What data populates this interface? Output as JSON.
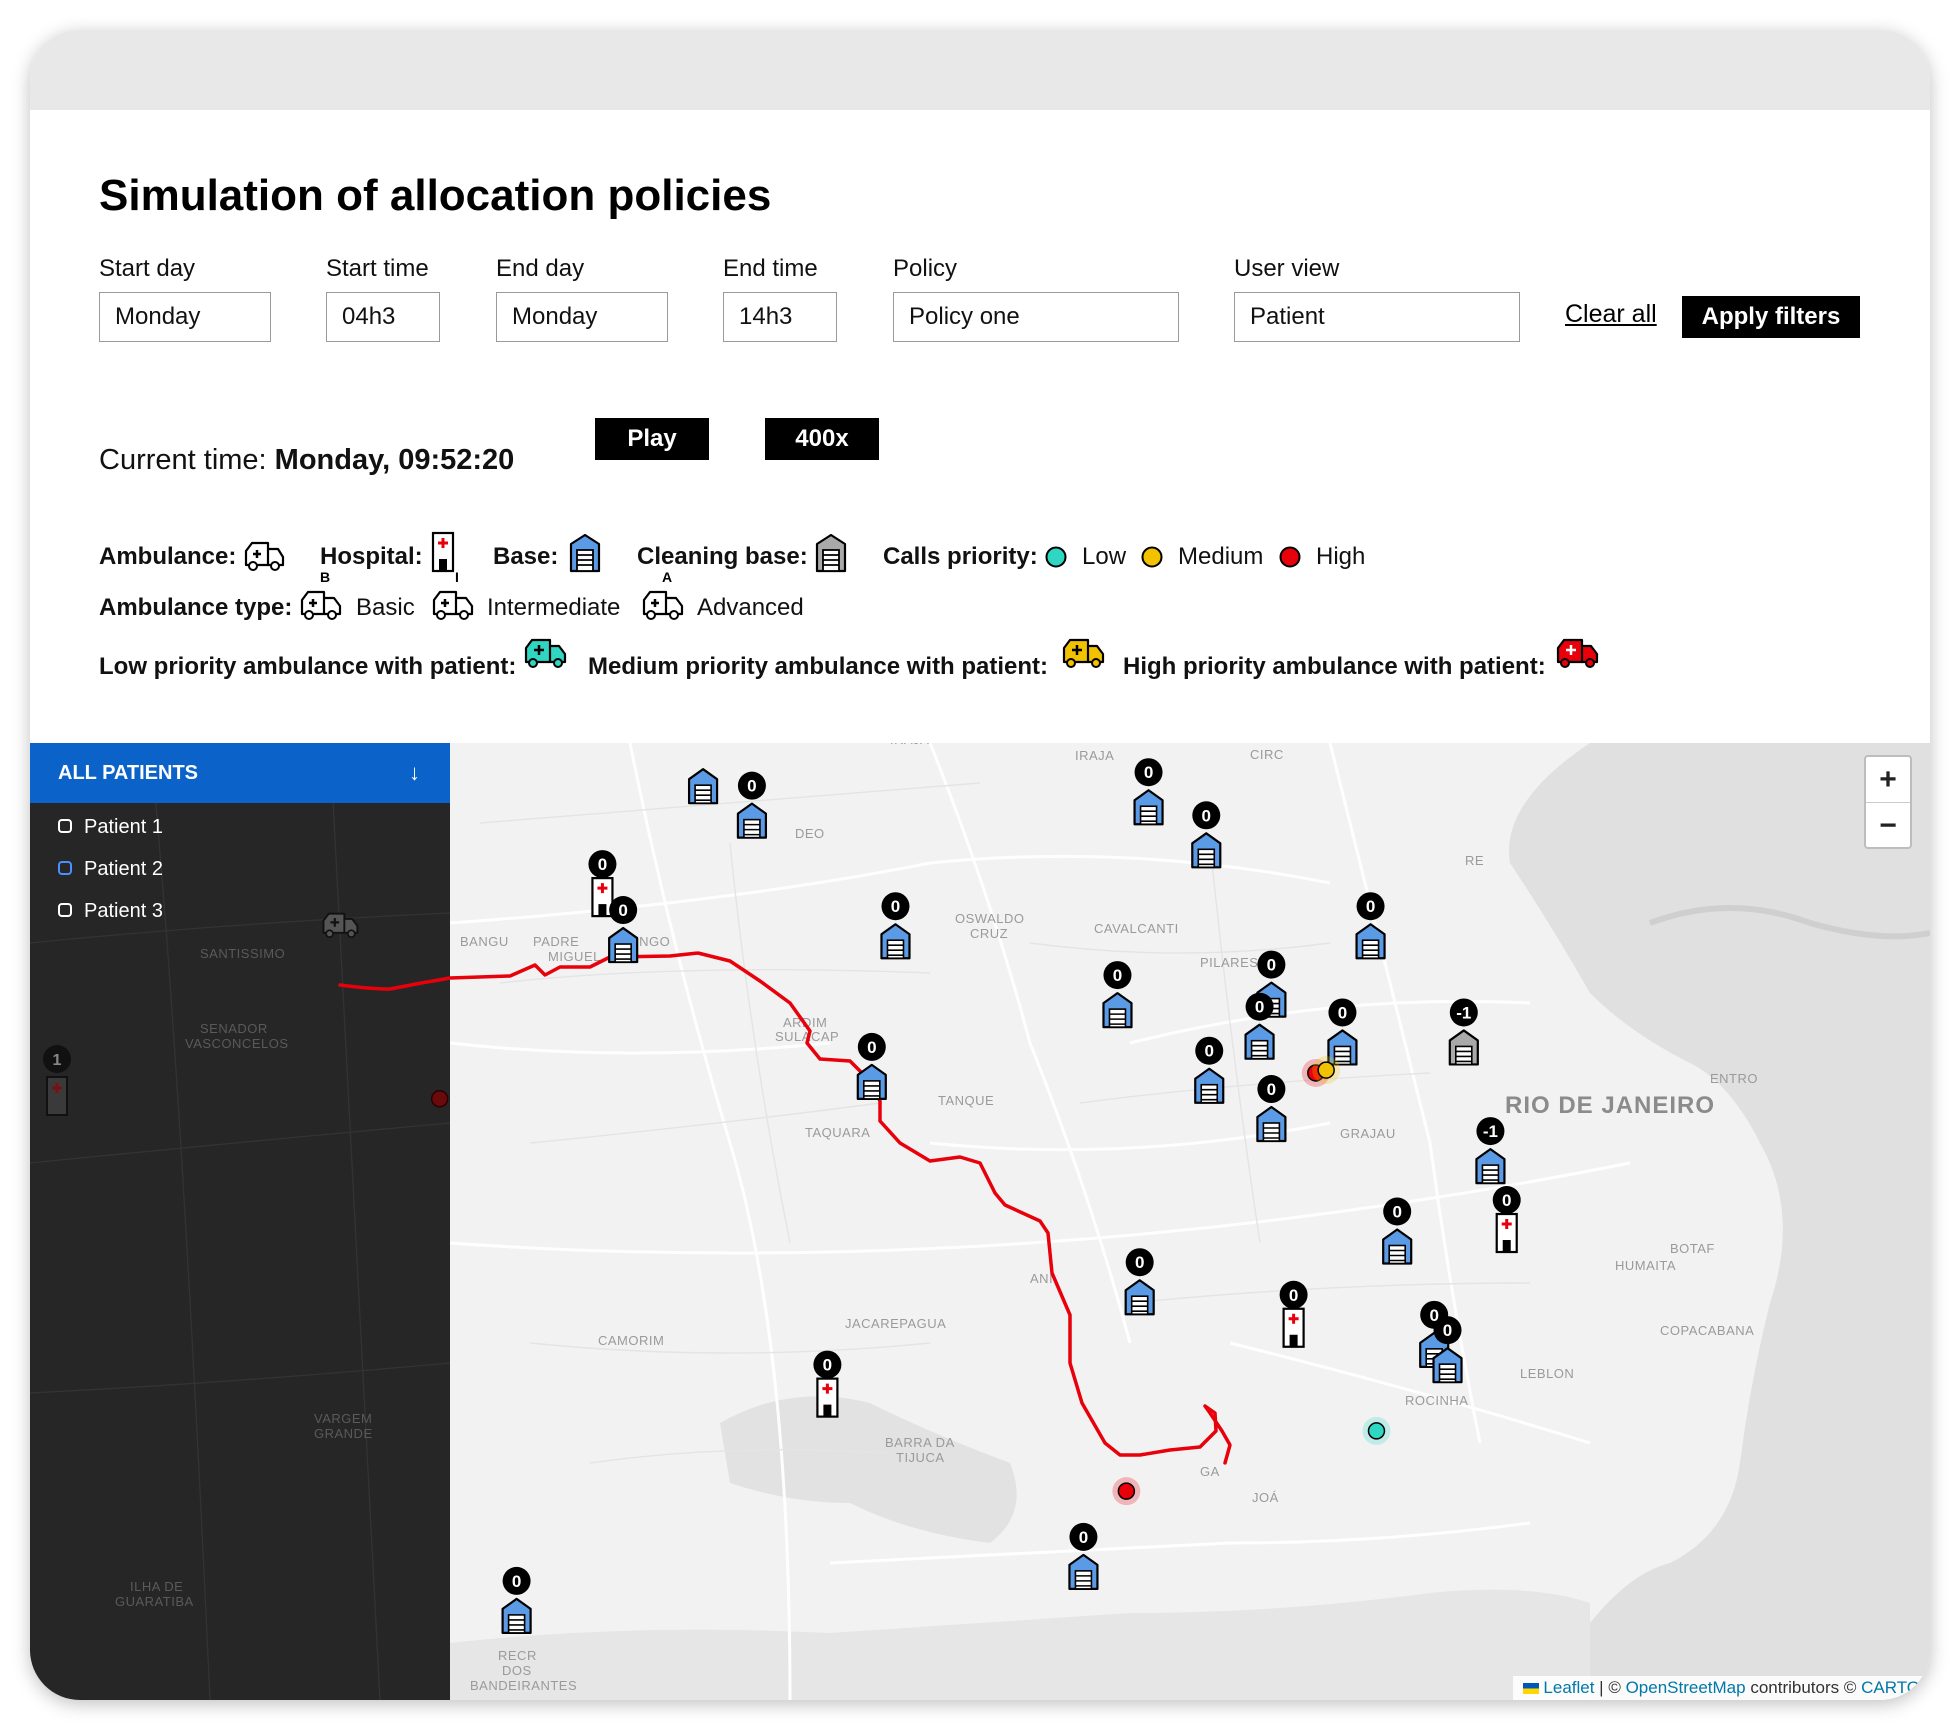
{
  "page": {
    "title": "Simulation of allocation policies"
  },
  "filters": {
    "start_day": {
      "label": "Start day",
      "value": "Monday"
    },
    "start_time": {
      "label": "Start time",
      "value": "04h3"
    },
    "end_day": {
      "label": "End day",
      "value": "Monday"
    },
    "end_time": {
      "label": "End time",
      "value": "14h3"
    },
    "policy": {
      "label": "Policy",
      "value": "Policy one"
    },
    "user_view": {
      "label": "User view",
      "value": "Patient"
    },
    "clear_all": "Clear all",
    "apply": "Apply filters"
  },
  "playback": {
    "current_label": "Current time:",
    "current_value": "Monday, 09:52:20",
    "play": "Play",
    "speed": "400x"
  },
  "legend": {
    "ambulance": "Ambulance:",
    "hospital": "Hospital:",
    "base": "Base:",
    "cleaning_base": "Cleaning base:",
    "calls_priority": "Calls priority:",
    "low": "Low",
    "medium": "Medium",
    "high": "High",
    "ambulance_type": "Ambulance type:",
    "basic": "Basic",
    "intermediate": "Intermediate",
    "advanced": "Advanced",
    "low_amb": "Low priority ambulance with patient:",
    "medium_amb": "Medium priority ambulance with patient:",
    "high_amb": "High priority ambulance with patient:",
    "basic_letter": "B",
    "intermediate_letter": "I",
    "advanced_letter": "A",
    "colors": {
      "low": "#2fd6c2",
      "medium": "#f2c200",
      "high": "#e8000b",
      "base_blue": "#5b9be6",
      "cleaning_gray": "#a9a9a9"
    }
  },
  "panel": {
    "header": "ALL PATIENTS",
    "arrow": "↓",
    "patients": [
      {
        "label": "Patient 1",
        "selected": false
      },
      {
        "label": "Patient 2",
        "selected": true
      },
      {
        "label": "Patient 3",
        "selected": false
      }
    ]
  },
  "map": {
    "zoom_in": "+",
    "zoom_out": "−",
    "attribution": {
      "leaflet": "Leaflet",
      "sep": " | © ",
      "osm": "OpenStreetMap",
      "contrib": " contributors © ",
      "carto": "CARTO"
    },
    "labels": {
      "santissimo": "SANTISSIMO",
      "senador": "SENADOR",
      "vasconcelos": "VASCONCELOS",
      "bangu": "BANGU",
      "padre": "PADRE",
      "miguel": "MIGUEL",
      "realengo": "ENGO",
      "oswaldo": "OSWALDO",
      "cruz": "CRUZ",
      "cavalcanti": "CAVALCANTI",
      "pilares": "PILARES",
      "iraja": "IRAJA",
      "deodoro": "DEO",
      "circ": "CIRC",
      "re": "RE",
      "jardim": "ARDIM",
      "sulacap": "SULACAP",
      "taquara": "TAQUARA",
      "tanque": "TANQUE",
      "rio": "RIO DE JANEIRO",
      "grajau": "GRAJAU",
      "centro": "ENTRO",
      "botafogo": "BOTAF",
      "humaita": "HUMAITA",
      "copacabana": "COPACABANA",
      "leblon": "LEBLON",
      "rocinha": "ROCINHA",
      "jacarepagua": "JACAREPAGUA",
      "camorim": "CAMORIM",
      "barra": "BARRA DA",
      "tijuca": "TIJUCA",
      "joa": "JOÁ",
      "recreio": "RECR",
      "dos": "DOS",
      "bandeirantes": "BANDEIRANTES",
      "vargem": "VARGEM",
      "grande": "GRANDE",
      "ilha": "ILHA DE",
      "guaratiba": "GUARATIBA",
      "anil": "ANI",
      "gavea": "GA"
    },
    "markers": [
      {
        "kind": "base",
        "badge": "",
        "lat": 0.019,
        "lng": 0.171
      },
      {
        "kind": "base",
        "badge": "0",
        "lat": 0.055,
        "lng": 0.204
      },
      {
        "kind": "base",
        "badge": "0",
        "lat": 0.041,
        "lng": 0.472
      },
      {
        "kind": "base",
        "badge": "0",
        "lat": 0.086,
        "lng": 0.511
      },
      {
        "kind": "hospital",
        "badge": "0",
        "lat": 0.137,
        "lng": 0.103
      },
      {
        "kind": "base",
        "badge": "0",
        "lat": 0.185,
        "lng": 0.117
      },
      {
        "kind": "base",
        "badge": "0",
        "lat": 0.181,
        "lng": 0.301
      },
      {
        "kind": "base",
        "badge": "0",
        "lat": 0.181,
        "lng": 0.622
      },
      {
        "kind": "base-hospital",
        "badge": "0",
        "lat": 0.242,
        "lng": 0.555
      },
      {
        "kind": "base",
        "badge": "0",
        "lat": 0.253,
        "lng": 0.451
      },
      {
        "kind": "base",
        "badge": "0",
        "lat": 0.286,
        "lng": 0.547
      },
      {
        "kind": "base",
        "badge": "0",
        "lat": 0.292,
        "lng": 0.603
      },
      {
        "kind": "cleaning",
        "badge": "-1",
        "lat": 0.292,
        "lng": 0.685
      },
      {
        "kind": "base",
        "badge": "0",
        "lat": 0.328,
        "lng": 0.285
      },
      {
        "kind": "base",
        "badge": "0",
        "lat": 0.332,
        "lng": 0.513
      },
      {
        "kind": "base",
        "badge": "0",
        "lat": 0.372,
        "lng": 0.555
      },
      {
        "kind": "base",
        "badge": "-1",
        "lat": 0.416,
        "lng": 0.703
      },
      {
        "kind": "hospital",
        "badge": "0",
        "lat": 0.488,
        "lng": 0.714
      },
      {
        "kind": "base",
        "badge": "0",
        "lat": 0.5,
        "lng": 0.64
      },
      {
        "kind": "base",
        "badge": "0",
        "lat": 0.553,
        "lng": 0.466
      },
      {
        "kind": "hospital",
        "badge": "0",
        "lat": 0.587,
        "lng": 0.57
      },
      {
        "kind": "base",
        "badge": "0",
        "lat": 0.608,
        "lng": 0.665
      },
      {
        "kind": "hospital",
        "badge": "0",
        "lat": 0.66,
        "lng": 0.255
      },
      {
        "kind": "base",
        "badge": "0",
        "lat": 0.624,
        "lng": 0.674
      },
      {
        "kind": "base",
        "badge": "0",
        "lat": 0.84,
        "lng": 0.428
      },
      {
        "kind": "base",
        "badge": "0",
        "lat": 0.886,
        "lng": 0.045
      }
    ],
    "calls": [
      {
        "priority": "high",
        "label": "high-call-1",
        "lat": 0.303,
        "lng": 0.585
      },
      {
        "priority": "medium",
        "label": "medium-call-1",
        "lat": 0.3,
        "lng": 0.592
      },
      {
        "priority": "high",
        "label": "high-call-2",
        "lat": 0.74,
        "lng": 0.457
      },
      {
        "priority": "low",
        "label": "low-call-1",
        "lat": 0.677,
        "lng": 0.626
      },
      {
        "priority": "high",
        "label": "high-call-dim",
        "lat": 0.33,
        "lng": -0.007
      }
    ]
  }
}
